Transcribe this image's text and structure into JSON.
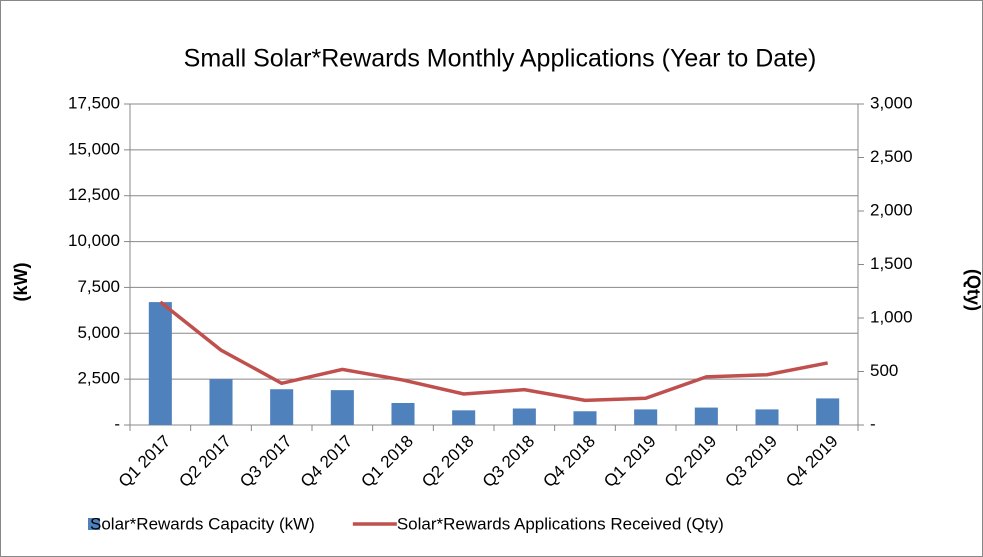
{
  "chart_data": {
    "type": "bar_line",
    "title": "Small Solar*Rewards Monthly Applications (Year to Date)",
    "ylabel": "(kW)",
    "y2label": "(Qty)",
    "categories": [
      "Q1 2017",
      "Q2 2017",
      "Q3 2017",
      "Q4 2017",
      "Q1 2018",
      "Q2 2018",
      "Q3 2018",
      "Q4 2018",
      "Q1 2019",
      "Q2 2019",
      "Q3 2019",
      "Q4 2019"
    ],
    "series": [
      {
        "name": "Solar*Rewards Capacity (kW)",
        "type": "bar",
        "color": "#4f81bd",
        "values": [
          6700,
          2500,
          1950,
          1900,
          1200,
          800,
          900,
          750,
          850,
          950,
          850,
          1450
        ]
      },
      {
        "name": "Solar*Rewards Applications Received (Qty)",
        "type": "line",
        "axis": "y2",
        "color": "#c0504d",
        "values": [
          1150,
          700,
          390,
          520,
          420,
          290,
          330,
          230,
          250,
          450,
          470,
          580
        ]
      }
    ],
    "ylim": [
      0,
      17500
    ],
    "yticks": [
      {
        "value": 0,
        "label": "-"
      },
      {
        "value": 2500,
        "label": "2,500"
      },
      {
        "value": 5000,
        "label": "5,000"
      },
      {
        "value": 7500,
        "label": "7,500"
      },
      {
        "value": 10000,
        "label": "10,000"
      },
      {
        "value": 12500,
        "label": "12,500"
      },
      {
        "value": 15000,
        "label": "15,000"
      },
      {
        "value": 17500,
        "label": "17,500"
      }
    ],
    "y2lim": [
      0,
      3000
    ],
    "y2ticks": [
      {
        "value": 0,
        "label": "-"
      },
      500,
      {
        "value": 1000,
        "label": "1,000"
      },
      {
        "value": 1500,
        "label": "1,500"
      },
      {
        "value": 2000,
        "label": "2,000"
      },
      {
        "value": 2500,
        "label": "2,500"
      },
      {
        "value": 3000,
        "label": "3,000"
      }
    ],
    "grid": true,
    "legend": "bottom"
  }
}
